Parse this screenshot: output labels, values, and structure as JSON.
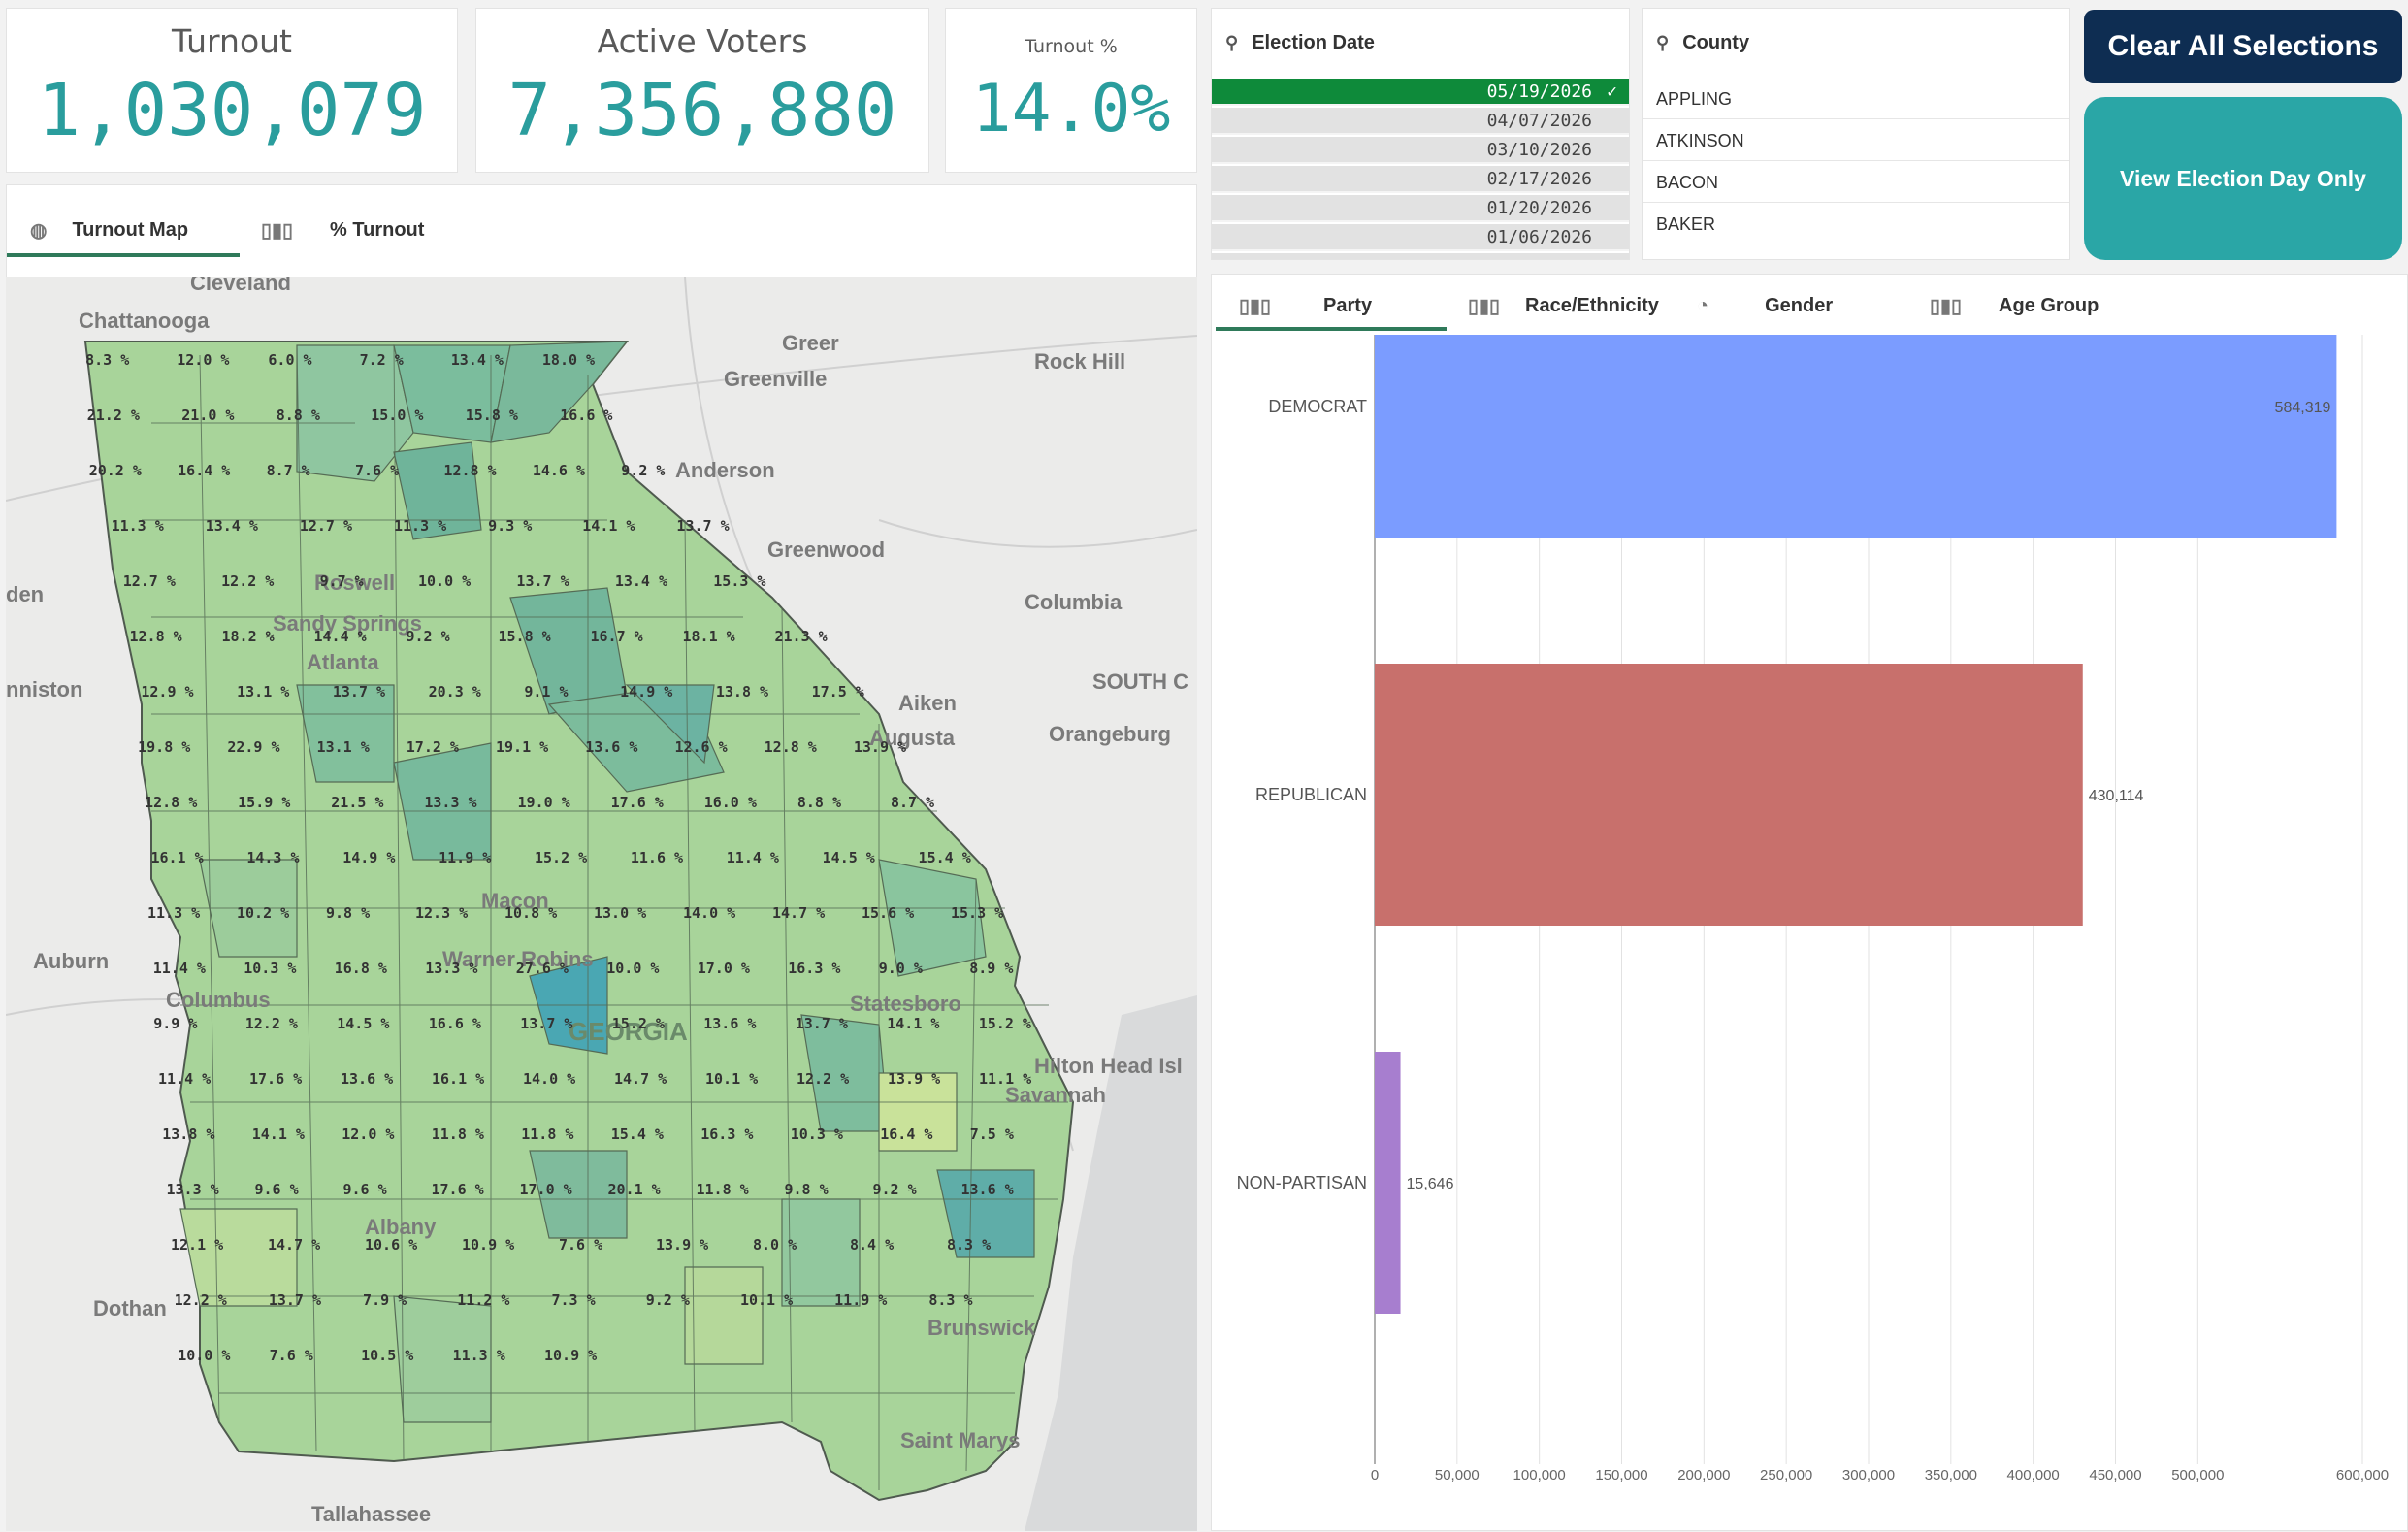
{
  "kpis": {
    "turnout": {
      "label": "Turnout",
      "value": "1,030,079"
    },
    "active_voters": {
      "label": "Active Voters",
      "value": "7,356,880"
    },
    "turnout_pct": {
      "label": "Turnout %",
      "value": "14.0%"
    }
  },
  "map_tabs": [
    {
      "label": "Turnout Map",
      "icon": "globe-icon",
      "active": true
    },
    {
      "label": "% Turnout",
      "icon": "bar-chart-icon",
      "active": false
    }
  ],
  "election_date_filter": {
    "title": "Election Date",
    "dates": [
      "05/19/2026",
      "04/07/2026",
      "03/10/2026",
      "02/17/2026",
      "01/20/2026",
      "01/06/2026"
    ],
    "selected": "05/19/2026"
  },
  "county_filter": {
    "title": "County",
    "counties": [
      "APPLING",
      "ATKINSON",
      "BACON",
      "BAKER"
    ]
  },
  "buttons": {
    "clear_all": "Clear All Selections",
    "view_election_day": "View Election Day Only"
  },
  "chart_tabs": [
    {
      "label": "Party",
      "icon": "bar-chart-icon",
      "active": true
    },
    {
      "label": "Race/Ethnicity",
      "icon": "bar-chart-icon",
      "active": false
    },
    {
      "label": "Gender",
      "icon": "pie-chart-icon",
      "active": false
    },
    {
      "label": "Age Group",
      "icon": "bar-chart-icon",
      "active": false
    }
  ],
  "map": {
    "state_label": "GEORGIA",
    "cities": [
      "Cleveland",
      "Chattanooga",
      "Greer",
      "Greenville",
      "Rock Hill",
      "Anderson",
      "Greenwood",
      "Columbia",
      "Aiken",
      "SOUTH C",
      "Orangeburg",
      "Augusta",
      "Roswell",
      "Sandy Springs",
      "Atlanta",
      "Macon",
      "Warner Robins",
      "Statesboro",
      "Savannah",
      "Hilton Head Isl",
      "Brunswick",
      "Saint Marys",
      "Albany",
      "Dothan",
      "Tallahassee",
      "Auburn",
      "Columbus",
      "nniston",
      "den"
    ],
    "county_turnout_labels": [
      "8.3 %",
      "12.0 %",
      "6.0 %",
      "7.2 %",
      "13.4 %",
      "18.0 %",
      "21.2 %",
      "21.0 %",
      "8.8 %",
      "15.0 %",
      "15.8 %",
      "16.6 %",
      "20.2 %",
      "16.4 %",
      "8.7 %",
      "7.6 %",
      "12.8 %",
      "14.6 %",
      "9.2 %",
      "11.3 %",
      "13.4 %",
      "12.7 %",
      "11.3 %",
      "9.3 %",
      "14.1 %",
      "13.7 %",
      "12.7 %",
      "12.2 %",
      "9.7 %",
      "10.0 %",
      "13.7 %",
      "13.4 %",
      "15.3 %",
      "12.8 %",
      "18.2 %",
      "14.4 %",
      "9.2 %",
      "15.8 %",
      "16.7 %",
      "18.1 %",
      "21.3 %",
      "12.9 %",
      "13.1 %",
      "13.7 %",
      "20.3 %",
      "9.1 %",
      "14.9 %",
      "13.8 %",
      "17.5 %",
      "19.8 %",
      "22.9 %",
      "13.1 %",
      "17.2 %",
      "19.1 %",
      "13.6 %",
      "12.6 %",
      "12.8 %",
      "13.9 %",
      "12.8 %",
      "15.9 %",
      "21.5 %",
      "13.3 %",
      "19.0 %",
      "17.6 %",
      "16.0 %",
      "8.8 %",
      "8.7 %",
      "16.1 %",
      "14.3 %",
      "14.9 %",
      "11.9 %",
      "15.2 %",
      "11.6 %",
      "11.4 %",
      "14.5 %",
      "15.4 %",
      "11.3 %",
      "10.2 %",
      "9.8 %",
      "12.3 %",
      "10.8 %",
      "13.0 %",
      "14.0 %",
      "14.7 %",
      "15.6 %",
      "15.3 %",
      "11.4 %",
      "10.3 %",
      "16.8 %",
      "13.3 %",
      "27.6 %",
      "10.0 %",
      "17.0 %",
      "16.3 %",
      "9.0 %",
      "8.9 %",
      "9.9 %",
      "12.2 %",
      "14.5 %",
      "16.6 %",
      "13.7 %",
      "15.2 %",
      "13.6 %",
      "13.7 %",
      "14.1 %",
      "15.2 %",
      "11.4 %",
      "17.6 %",
      "13.6 %",
      "16.1 %",
      "14.0 %",
      "14.7 %",
      "10.1 %",
      "12.2 %",
      "13.9 %",
      "11.1 %",
      "13.8 %",
      "14.1 %",
      "12.0 %",
      "11.8 %",
      "11.8 %",
      "15.4 %",
      "16.3 %",
      "10.3 %",
      "16.4 %",
      "7.5 %",
      "13.3 %",
      "9.6 %",
      "9.6 %",
      "17.6 %",
      "17.0 %",
      "20.1 %",
      "11.8 %",
      "9.8 %",
      "9.2 %",
      "13.6 %",
      "12.1 %",
      "14.7 %",
      "10.6 %",
      "10.9 %",
      "7.6 %",
      "13.9 %",
      "8.0 %",
      "8.4 %",
      "8.3 %",
      "12.2 %",
      "13.7 %",
      "7.9 %",
      "11.2 %",
      "7.3 %",
      "9.2 %",
      "10.1 %",
      "11.9 %",
      "8.3 %",
      "10.0 %",
      "7.6 %",
      "10.5 %",
      "11.3 %",
      "10.9 %"
    ]
  },
  "chart_data": {
    "type": "bar",
    "orientation": "horizontal",
    "categories": [
      "DEMOCRAT",
      "REPUBLICAN",
      "NON-PARTISAN"
    ],
    "values": [
      584319,
      430114,
      15646
    ],
    "value_labels": [
      "584,319",
      "430,114",
      "15,646"
    ],
    "colors": [
      "#7b9cff",
      "#c8706c",
      "#a77ecf"
    ],
    "xlim": [
      0,
      600000
    ],
    "x_ticks": [
      "0",
      "50,000",
      "100,000",
      "150,000",
      "200,000",
      "250,000",
      "300,000",
      "350,000",
      "400,000",
      "450,000",
      "500,000",
      "600,000"
    ],
    "x_tick_values": [
      0,
      50000,
      100000,
      150000,
      200000,
      250000,
      300000,
      350000,
      400000,
      450000,
      500000,
      600000
    ],
    "grid": true
  }
}
